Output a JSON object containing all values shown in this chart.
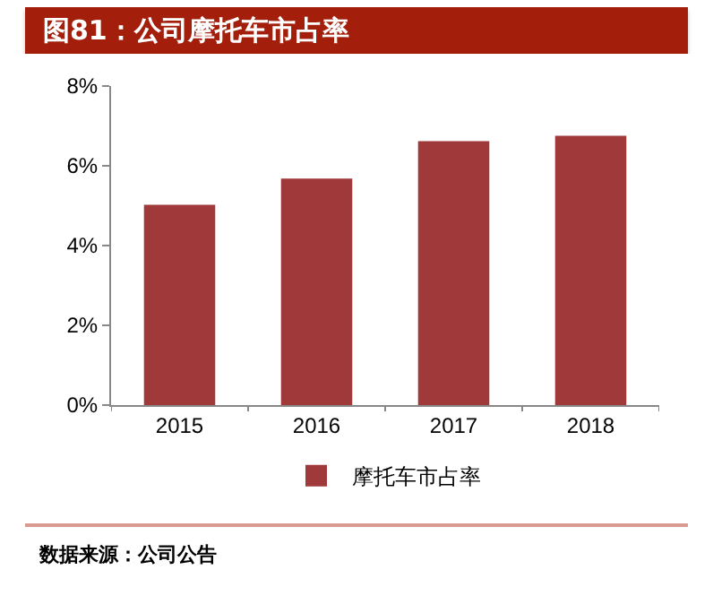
{
  "chart_data": {
    "type": "bar",
    "title": "图81：公司摩托车市占率",
    "categories": [
      "2015",
      "2016",
      "2017",
      "2018"
    ],
    "series": [
      {
        "name": "摩托车市占率",
        "color": "#a0393a",
        "values": [
          5.02,
          5.68,
          6.62,
          6.75
        ]
      }
    ],
    "ylim": [
      0,
      8
    ],
    "yticks": [
      {
        "value": 0,
        "label": "0%"
      },
      {
        "value": 2,
        "label": "2%"
      },
      {
        "value": 4,
        "label": "4%"
      },
      {
        "value": 6,
        "label": "6%"
      },
      {
        "value": 8,
        "label": "8%"
      }
    ],
    "grid": false,
    "legend": "bottom",
    "annotations": [
      "数据来源：公司公告"
    ]
  }
}
